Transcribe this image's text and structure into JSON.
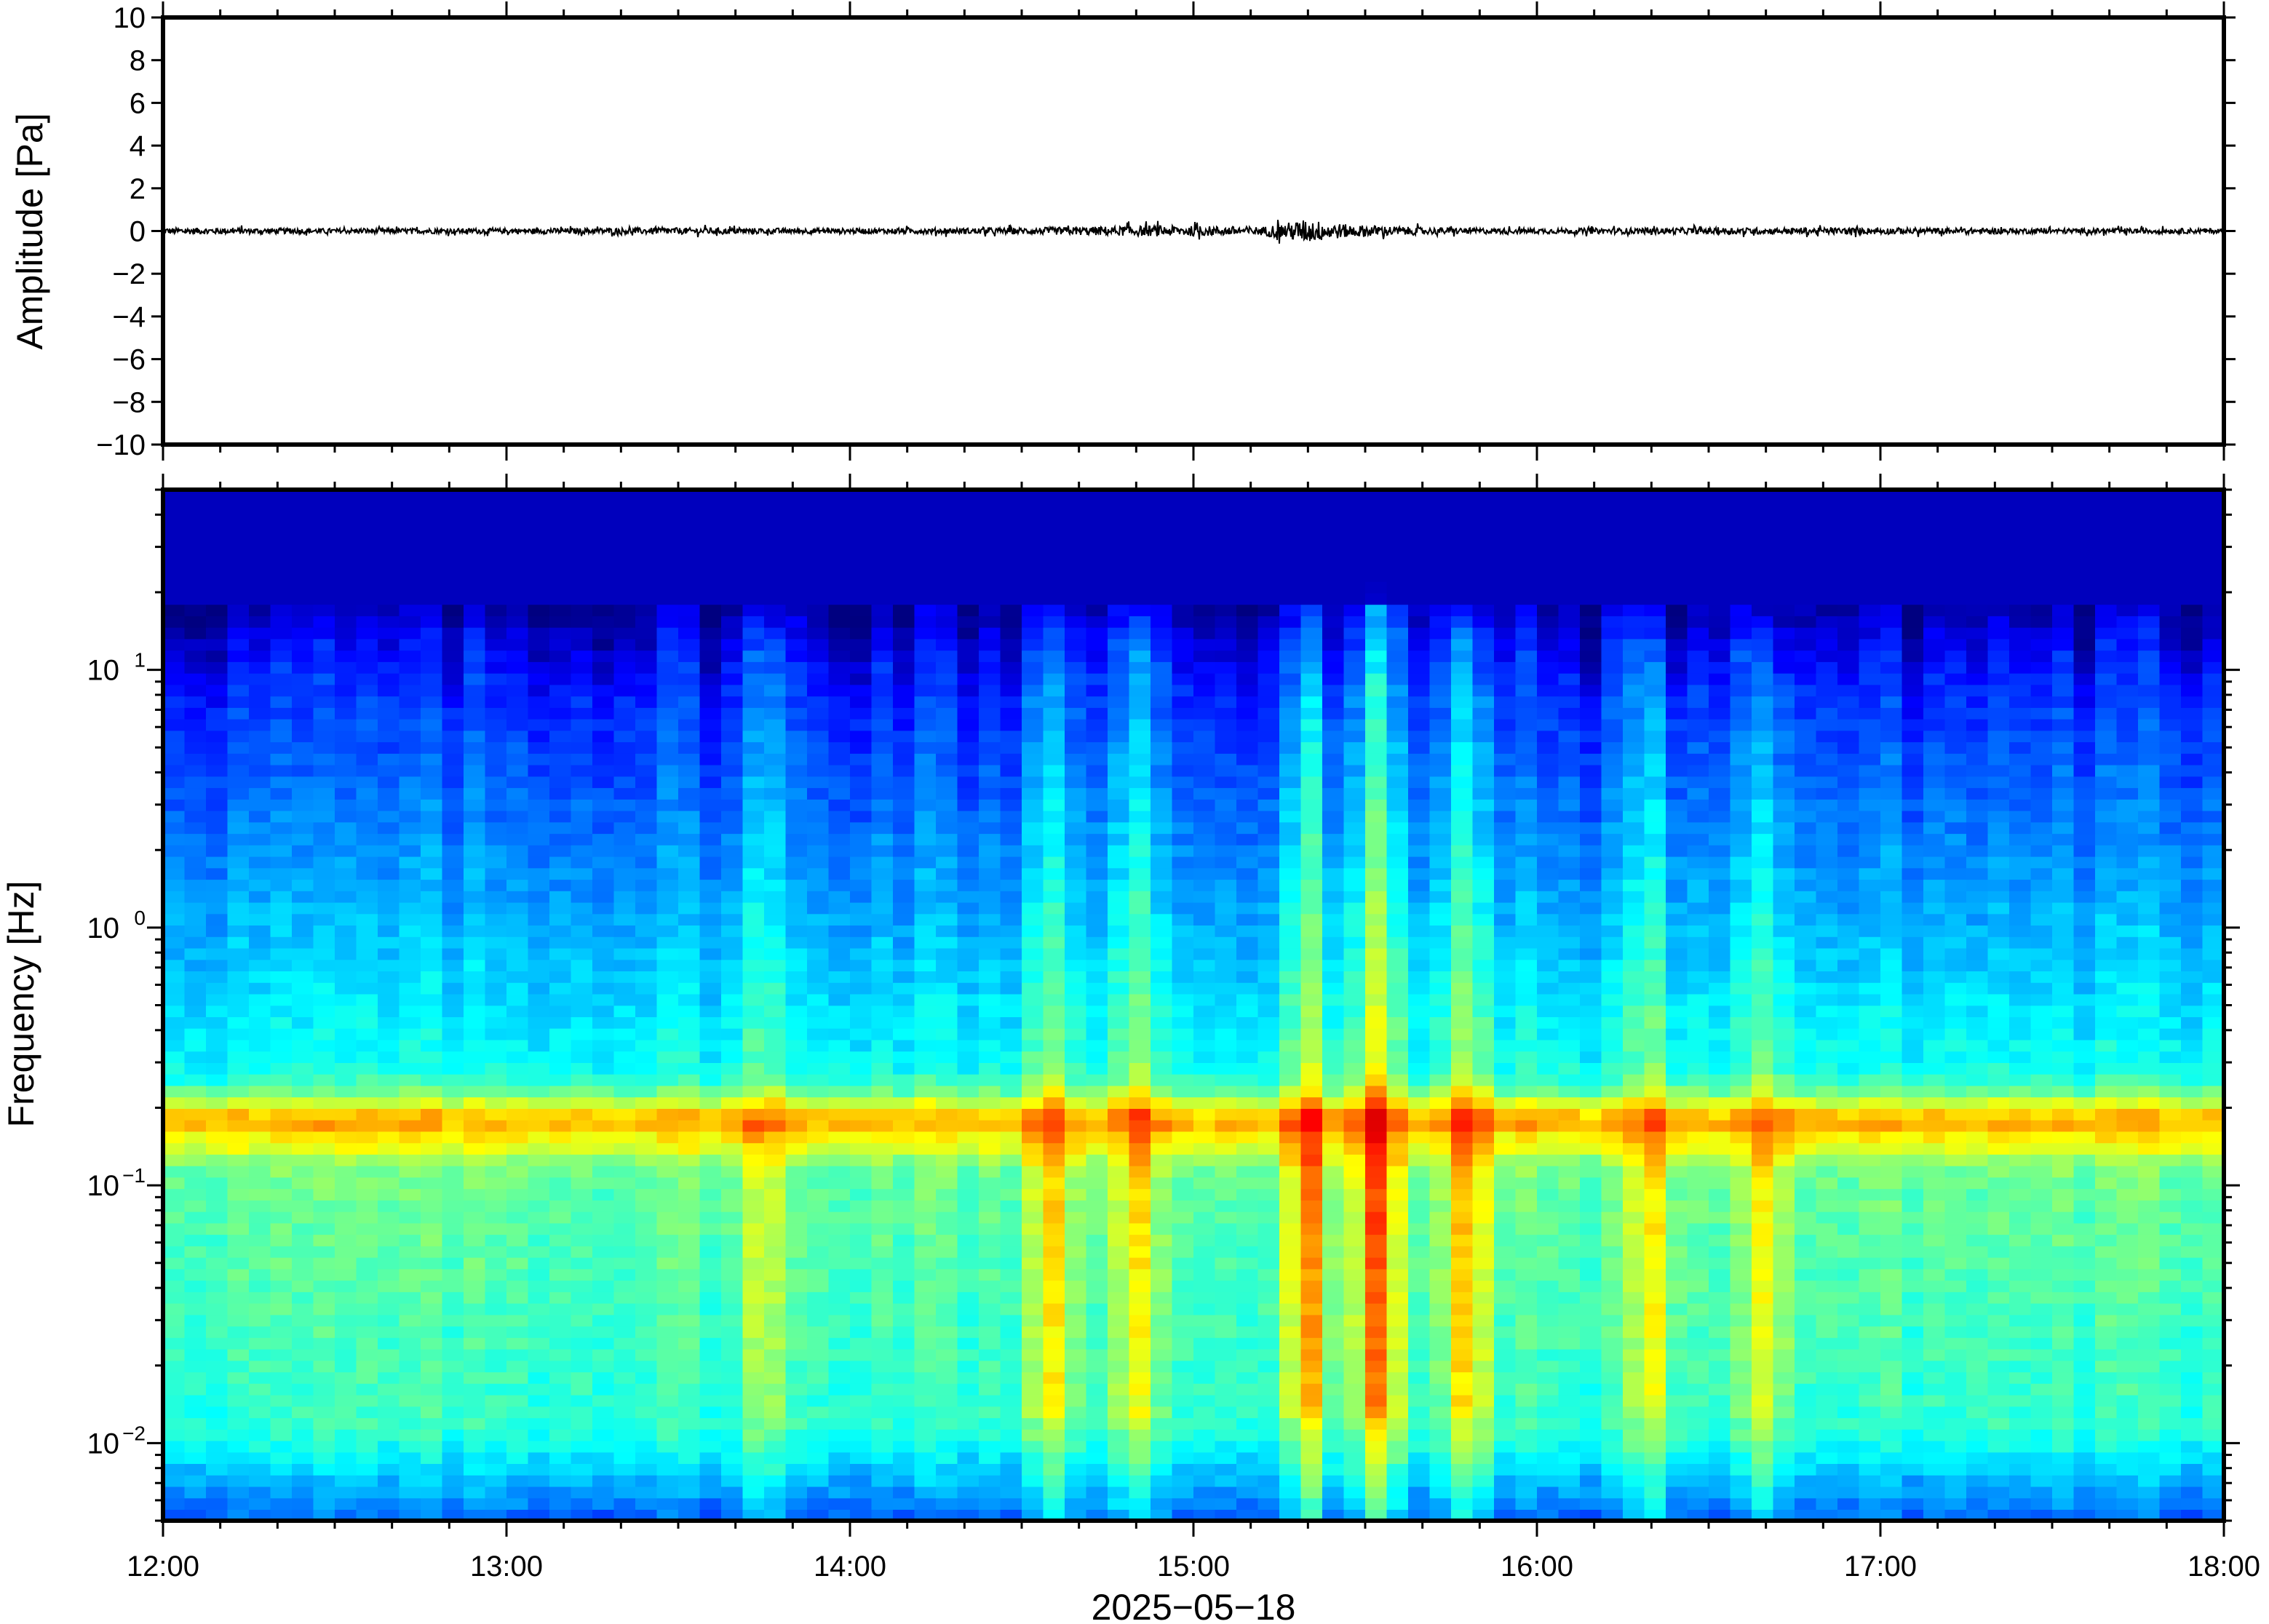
{
  "chart_data": [
    {
      "type": "line",
      "ylabel": "Amplitude [Pa]",
      "ylim": [
        -10,
        10
      ],
      "yticks": [
        10,
        8,
        6,
        4,
        2,
        0,
        -2,
        -4,
        -6,
        -8,
        -10
      ],
      "ytick_labels": [
        "10",
        "8",
        "6",
        "4",
        "2",
        "0",
        "−2",
        "−4",
        "−6",
        "−8",
        "−10"
      ],
      "xlim": [
        "12:00",
        "18:00"
      ],
      "color": "#000000",
      "series": [
        {
          "x_hours": [
            12.0,
            12.5,
            13.0,
            13.5,
            14.0,
            14.5,
            14.9,
            15.2,
            15.33,
            15.45,
            15.7,
            16.0,
            16.5,
            17.0,
            17.5,
            18.0
          ],
          "envelope_pa": [
            0.15,
            0.12,
            0.12,
            0.15,
            0.12,
            0.15,
            0.25,
            0.2,
            0.55,
            0.3,
            0.15,
            0.12,
            0.15,
            0.15,
            0.12,
            0.12
          ]
        }
      ],
      "grid": false
    },
    {
      "type": "heatmap",
      "xlabel": "2025−05−18",
      "ylabel": "Frequency [Hz]",
      "yscale": "log",
      "ylim": [
        0.005,
        50
      ],
      "yticks": [
        0.01,
        0.1,
        1,
        10
      ],
      "ytick_labels": [
        {
          "base": "10",
          "exp": "−2"
        },
        {
          "base": "10",
          "exp": "−1"
        },
        {
          "base": "10",
          "exp": "0"
        },
        {
          "base": "10",
          "exp": "1"
        }
      ],
      "xlim": [
        "12:00",
        "18:00"
      ],
      "xtick_labels": [
        "12:00",
        "13:00",
        "14:00",
        "15:00",
        "16:00",
        "17:00",
        "18:00"
      ],
      "colormap": "jet",
      "features": {
        "background_band_hz": [
          0.14,
          0.22
        ],
        "event_columns": [
          {
            "time": "13:45",
            "top_hz": 12,
            "strength": 0.3
          },
          {
            "time": "14:35",
            "top_hz": 17,
            "strength": 0.55
          },
          {
            "time": "14:50",
            "top_hz": 12,
            "strength": 0.45
          },
          {
            "time": "15:20",
            "top_hz": 14,
            "strength": 0.5
          },
          {
            "time": "15:20",
            "top_hz": 20,
            "strength": 0.75
          },
          {
            "time": "15:32",
            "top_hz": 22,
            "strength": 0.85
          },
          {
            "time": "15:48",
            "top_hz": 14,
            "strength": 0.6
          },
          {
            "time": "16:20",
            "top_hz": 12,
            "strength": 0.45
          },
          {
            "time": "16:40",
            "top_hz": 13,
            "strength": 0.45
          }
        ]
      }
    }
  ]
}
